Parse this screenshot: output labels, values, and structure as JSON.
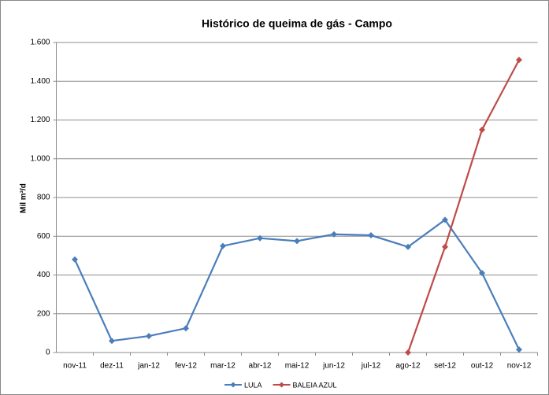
{
  "chart_data": {
    "type": "line",
    "title": "Histórico de queima de gás - Campo",
    "y_label": "Mil m³/d",
    "categories": [
      "nov-11",
      "dez-11",
      "jan-12",
      "fev-12",
      "mar-12",
      "abr-12",
      "mai-12",
      "jun-12",
      "jul-12",
      "ago-12",
      "set-12",
      "out-12",
      "nov-12"
    ],
    "series": [
      {
        "name": "LULA",
        "color": "#4a7ebb",
        "values": [
          480,
          60,
          85,
          125,
          550,
          590,
          575,
          610,
          605,
          545,
          685,
          410,
          15
        ]
      },
      {
        "name": "BALEIA AZUL",
        "color": "#be4b48",
        "values": [
          null,
          null,
          null,
          null,
          null,
          null,
          null,
          null,
          null,
          0,
          545,
          1150,
          1510
        ]
      }
    ],
    "ylim": [
      0,
      1600
    ],
    "yticks": [
      0,
      200,
      400,
      600,
      800,
      {
        "value": 1000,
        "label": "1.000"
      },
      {
        "value": 1200,
        "label": "1.200"
      },
      {
        "value": 1400,
        "label": "1.400"
      },
      {
        "value": 1600,
        "label": "1.600"
      }
    ],
    "grid": true,
    "legend": "bottom"
  }
}
